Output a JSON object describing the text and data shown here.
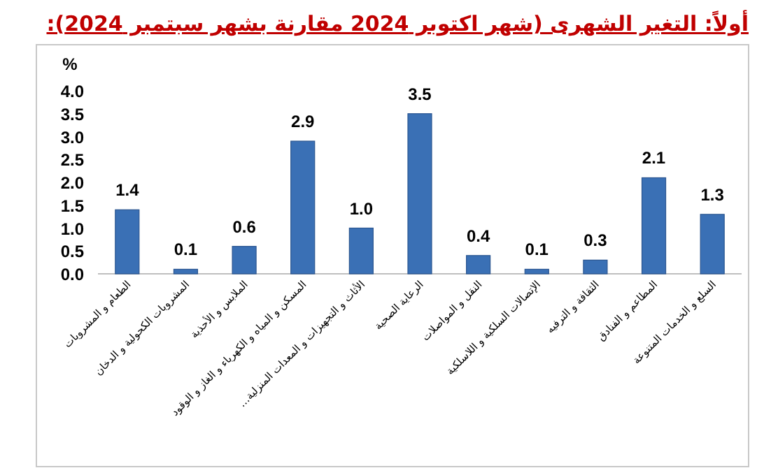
{
  "chart_data": {
    "type": "bar",
    "title": "أولاً: التغير الشهرى (شهر اكتوبر 2024 مقارنة بشهر سبتمبر 2024):",
    "ylabel": "%",
    "categories": [
      "الطعام و المشروبات",
      "المشروبات الكحولية و الدخان",
      "الملابس و الأحذية",
      "المسكن و المياه و الكهرباء و الغاز و الوقود",
      "الأثاث و التجهيزات و المعدات المنزلية…",
      "الرعاية الصحية",
      "النقل و المواصلات",
      "الإتصالات السلكية و اللاسلكية",
      "الثقافة و الترفيه",
      "المطاعم و الفنادق",
      "السلع و الخدمات المتنوعة"
    ],
    "values": [
      1.4,
      0.1,
      0.6,
      2.9,
      1.0,
      3.5,
      0.4,
      0.1,
      0.3,
      2.1,
      1.3
    ],
    "value_labels": [
      "1.4",
      "0.1",
      "0.6",
      "2.9",
      "1.0",
      "3.5",
      "0.4",
      "0.1",
      "0.3",
      "2.1",
      "1.3"
    ],
    "color": "#3a70b5",
    "ylim": [
      0,
      4
    ],
    "yticks": [
      {
        "value": 0,
        "label": "0.0"
      },
      {
        "value": 0.5,
        "label": "0.5"
      },
      {
        "value": 1,
        "label": "1.0"
      },
      {
        "value": 1.5,
        "label": "1.5"
      },
      {
        "value": 2,
        "label": "2.0"
      },
      {
        "value": 2.5,
        "label": "2.5"
      },
      {
        "value": 3,
        "label": "3.0"
      },
      {
        "value": 3.5,
        "label": "3.5"
      },
      {
        "value": 4,
        "label": "4.0"
      }
    ]
  }
}
